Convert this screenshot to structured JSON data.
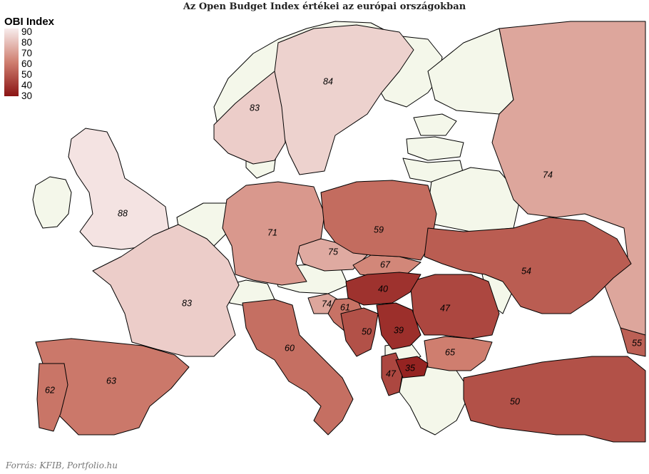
{
  "title": "Az Open Budget Index értékei az európai országokban",
  "legend": {
    "title": "OBI Index",
    "ticks": [
      "90",
      "80",
      "70",
      "60",
      "50",
      "40",
      "30"
    ],
    "color_high": "#f7ecec",
    "color_mid": "#cf7e6f",
    "color_low": "#8b1414",
    "no_data_color": "#f4f7ea"
  },
  "source": "Forrás: KFIB, Portfolio.hu",
  "chart_data": {
    "type": "choropleth",
    "title": "Az Open Budget Index értékei az európai országokban",
    "legend_title": "OBI Index",
    "scale": [
      30,
      90
    ],
    "values": [
      {
        "value": 88
      },
      {
        "value": 84
      },
      {
        "value": 83
      },
      {
        "value": 83
      },
      {
        "value": 75
      },
      {
        "value": 74
      },
      {
        "value": 74
      },
      {
        "value": 71
      },
      {
        "value": 67
      },
      {
        "value": 65
      },
      {
        "value": 63
      },
      {
        "value": 62
      },
      {
        "value": 61
      },
      {
        "value": 60
      },
      {
        "value": 59
      },
      {
        "value": 55
      },
      {
        "value": 54
      },
      {
        "value": 50
      },
      {
        "value": 50
      },
      {
        "value": 47
      },
      {
        "value": 47
      },
      {
        "value": 40
      },
      {
        "value": 39
      },
      {
        "value": 35
      }
    ]
  }
}
